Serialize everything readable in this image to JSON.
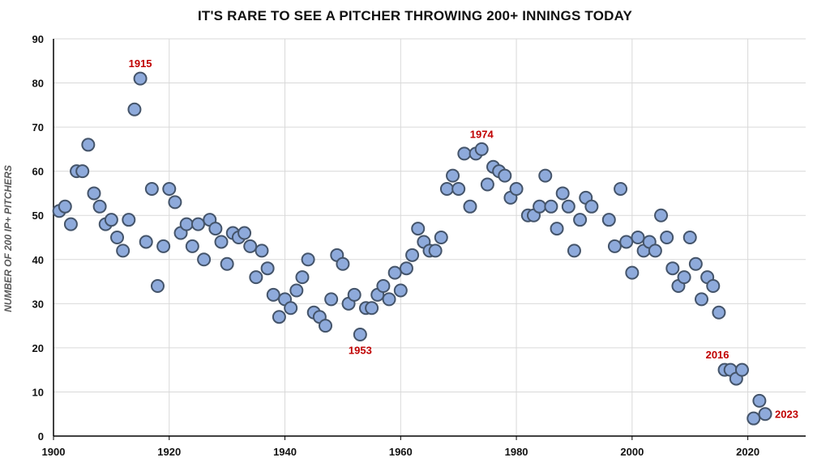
{
  "chart_data": {
    "type": "scatter",
    "title": "IT'S RARE TO SEE A PITCHER THROWING 200+ INNINGS TODAY",
    "xlabel": "",
    "ylabel": "NUMBER OF 200 IP+ PITCHERS",
    "xlim": [
      1900,
      2030
    ],
    "ylim": [
      0,
      90
    ],
    "xticks": [
      1900,
      1920,
      1940,
      1960,
      1980,
      2000,
      2020
    ],
    "yticks": [
      0,
      10,
      20,
      30,
      40,
      50,
      60,
      70,
      80,
      90
    ],
    "grid": true,
    "series": [
      {
        "name": "200+ IP pitchers",
        "x": [
          1901,
          1902,
          1903,
          1904,
          1905,
          1906,
          1907,
          1908,
          1909,
          1910,
          1911,
          1912,
          1913,
          1914,
          1915,
          1916,
          1917,
          1918,
          1919,
          1920,
          1921,
          1922,
          1923,
          1924,
          1925,
          1926,
          1927,
          1928,
          1929,
          1930,
          1931,
          1932,
          1933,
          1934,
          1935,
          1936,
          1937,
          1938,
          1939,
          1940,
          1941,
          1942,
          1943,
          1944,
          1945,
          1946,
          1947,
          1948,
          1949,
          1950,
          1951,
          1952,
          1953,
          1954,
          1955,
          1956,
          1957,
          1958,
          1959,
          1960,
          1961,
          1962,
          1963,
          1964,
          1965,
          1966,
          1967,
          1968,
          1969,
          1970,
          1971,
          1972,
          1973,
          1974,
          1975,
          1976,
          1977,
          1978,
          1979,
          1980,
          1982,
          1983,
          1984,
          1985,
          1986,
          1987,
          1988,
          1989,
          1990,
          1991,
          1992,
          1993,
          1996,
          1997,
          1998,
          1999,
          2000,
          2001,
          2002,
          2003,
          2004,
          2005,
          2006,
          2007,
          2008,
          2009,
          2010,
          2011,
          2012,
          2013,
          2014,
          2015,
          2016,
          2017,
          2018,
          2019,
          2021,
          2022,
          2023
        ],
        "y": [
          51,
          52,
          48,
          60,
          60,
          66,
          55,
          52,
          48,
          49,
          45,
          42,
          49,
          74,
          81,
          44,
          56,
          34,
          43,
          56,
          53,
          46,
          48,
          43,
          48,
          40,
          49,
          47,
          44,
          39,
          46,
          45,
          46,
          43,
          36,
          42,
          38,
          32,
          27,
          31,
          29,
          33,
          36,
          40,
          28,
          27,
          25,
          31,
          41,
          39,
          30,
          32,
          23,
          29,
          29,
          32,
          34,
          31,
          37,
          33,
          38,
          41,
          47,
          44,
          42,
          42,
          45,
          56,
          59,
          56,
          64,
          52,
          64,
          65,
          57,
          61,
          60,
          59,
          54,
          56,
          50,
          50,
          52,
          59,
          52,
          47,
          55,
          52,
          42,
          49,
          54,
          52,
          49,
          43,
          56,
          44,
          37,
          45,
          42,
          44,
          42,
          50,
          45,
          38,
          34,
          36,
          45,
          39,
          31,
          36,
          34,
          28,
          15,
          15,
          13,
          15,
          4,
          8,
          5
        ],
        "marker_fill": "#8eaadb",
        "marker_edge": "#44546a"
      }
    ],
    "annotations": [
      {
        "text": "1915",
        "x": 1915,
        "y": 81,
        "position": "above",
        "color": "#c00000"
      },
      {
        "text": "1953",
        "x": 1953,
        "y": 23,
        "position": "below",
        "color": "#c00000"
      },
      {
        "text": "1974",
        "x": 1974,
        "y": 65,
        "position": "above",
        "color": "#c00000"
      },
      {
        "text": "2016",
        "x": 2016,
        "y": 15,
        "position": "above-left",
        "color": "#c00000"
      },
      {
        "text": "2023",
        "x": 2023,
        "y": 5,
        "position": "right",
        "color": "#c00000"
      }
    ]
  }
}
